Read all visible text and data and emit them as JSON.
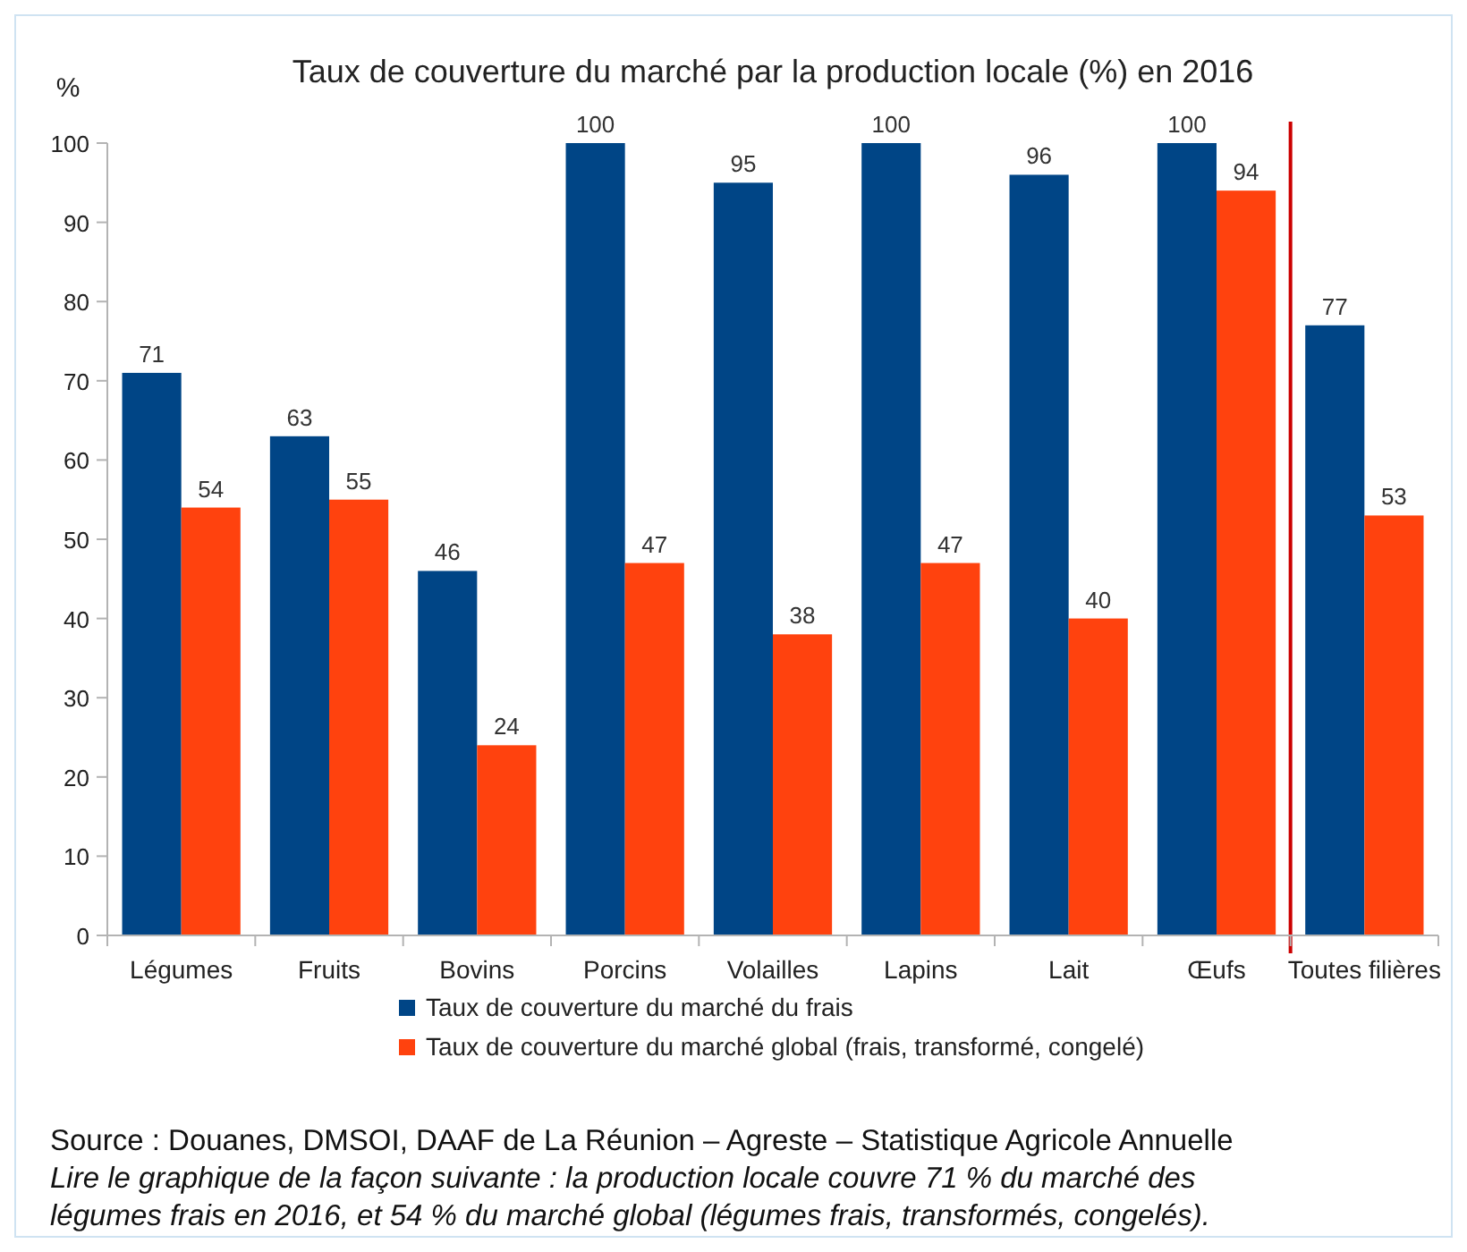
{
  "chart_data": {
    "type": "bar",
    "title": "Taux de couverture du marché par la production locale (%) en 2016",
    "ylabel": "%",
    "categories": [
      "Légumes",
      "Fruits",
      "Bovins",
      "Porcins",
      "Volailles",
      "Lapins",
      "Lait",
      "Œufs",
      "Toutes filières"
    ],
    "series": [
      {
        "name": "Taux de couverture du marché du frais",
        "color": "#004586",
        "values": [
          71,
          63,
          46,
          100,
          95,
          100,
          96,
          100,
          77
        ]
      },
      {
        "name": "Taux de couverture du marché global (frais, transformé, congelé)",
        "color": "#ff420e",
        "values": [
          54,
          55,
          24,
          47,
          38,
          47,
          40,
          94,
          53
        ]
      }
    ],
    "ylim": [
      0,
      100
    ],
    "yticks": [
      0,
      10,
      20,
      30,
      40,
      50,
      60,
      70,
      80,
      90,
      100
    ],
    "grid": false,
    "legend": "bottom",
    "data_labels": true,
    "ref_lines": [
      {
        "axis": "x",
        "value": "Toutes filières",
        "color": "#cc0000"
      }
    ],
    "annotations": [
      "Source : Douanes, DMSOI, DAAF de La Réunion – Agreste – Statistique Agricole Annuelle",
      "Lire le graphique de la façon suivante : la production locale couvre 71 % du marché des légumes frais en 2016,  et 54 % du marché global (légumes frais, transformés, congelés)."
    ]
  }
}
